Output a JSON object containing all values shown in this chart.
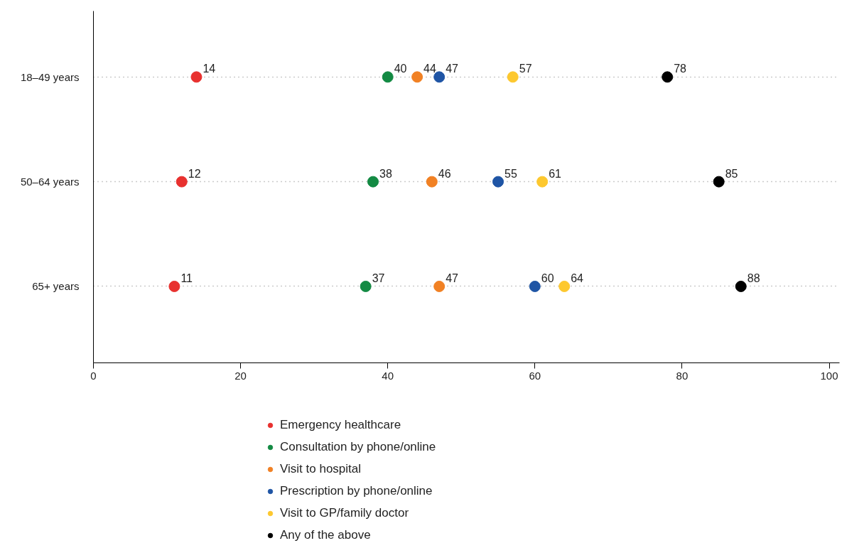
{
  "chart_data": {
    "type": "scatter",
    "orientation": "horizontal",
    "categories": [
      "18–49 years",
      "50–64 years",
      "65+ years"
    ],
    "series": [
      {
        "name": "Emergency healthcare",
        "color": "#e8312f",
        "values": [
          14,
          12,
          11
        ]
      },
      {
        "name": "Consultation by phone/online",
        "color": "#138a43",
        "values": [
          40,
          38,
          37
        ]
      },
      {
        "name": "Visit to hospital",
        "color": "#f18124",
        "values": [
          44,
          46,
          47
        ]
      },
      {
        "name": "Prescription by phone/online",
        "color": "#1f55a5",
        "values": [
          47,
          55,
          60
        ]
      },
      {
        "name": "Visit to GP/family doctor",
        "color": "#fdc82f",
        "values": [
          57,
          61,
          64
        ]
      },
      {
        "name": "Any of the above",
        "color": "#000000",
        "values": [
          78,
          85,
          88
        ]
      }
    ],
    "xlim": [
      0,
      101.4
    ],
    "xticks": [
      0,
      20,
      40,
      60,
      80,
      100
    ],
    "grid": "y",
    "legend": "bottom",
    "marker": "circle",
    "data_labels": true
  }
}
